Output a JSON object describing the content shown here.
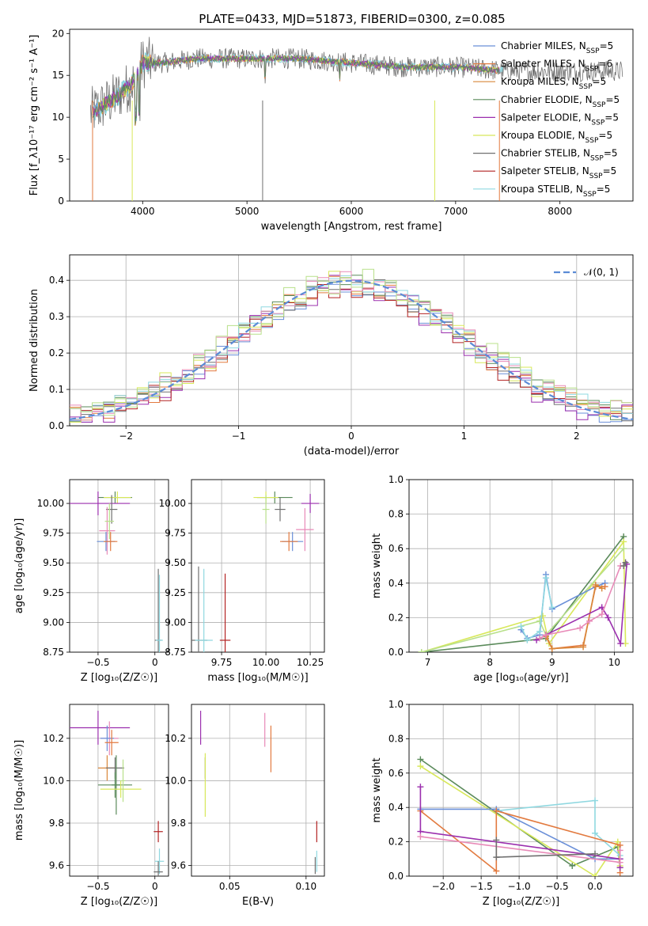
{
  "title": "PLATE=0433, MJD=51873, FIBERID=0300, z=0.085",
  "colors": {
    "Chabrier MILES": "#6a8fd8",
    "Salpeter MILES": "#e27a3f",
    "Kroupa MILES": "#d9873a",
    "Chabrier ELODIE": "#5a8a5a",
    "Salpeter ELODIE": "#9b2fae",
    "Kroupa ELODIE": "#d8e85a",
    "Chabrier STELIB": "#707070",
    "Salpeter STELIB": "#b22222",
    "Kroupa STELIB": "#8fd8e0",
    "pink": "#e88ab8",
    "lightgreen": "#b8e08a",
    "gaussian": "#5b8bd6"
  },
  "chart_data": [
    {
      "id": "spectrum",
      "type": "line",
      "xlabel": "wavelength [Angstrom, rest frame]",
      "ylabel": "Flux [f_λ10⁻¹⁷ erg cm⁻² s⁻¹ A⁻¹]",
      "xlim": [
        3300,
        8700
      ],
      "ylim": [
        0,
        20.5
      ],
      "xticks": [
        4000,
        5000,
        6000,
        7000,
        8000
      ],
      "yticks": [
        0,
        5,
        10,
        15,
        20
      ],
      "legend_position": "right",
      "legend": [
        {
          "label": "Chabrier MILES, N",
          "sub": "SSP",
          "suffix": "=5",
          "color": "#6a8fd8"
        },
        {
          "label": "Salpeter MILES, N",
          "sub": "SSP",
          "suffix": "=6",
          "color": "#e27a3f"
        },
        {
          "label": "Kroupa MILES, N",
          "sub": "SSP",
          "suffix": "=5",
          "color": "#d9873a"
        },
        {
          "label": "Chabrier ELODIE, N",
          "sub": "SSP",
          "suffix": "=5",
          "color": "#5a8a5a"
        },
        {
          "label": "Salpeter ELODIE, N",
          "sub": "SSP",
          "suffix": "=5",
          "color": "#9b2fae"
        },
        {
          "label": "Kroupa ELODIE, N",
          "sub": "SSP",
          "suffix": "=5",
          "color": "#d8e85a"
        },
        {
          "label": "Chabrier STELIB, N",
          "sub": "SSP",
          "suffix": "=5",
          "color": "#707070"
        },
        {
          "label": "Salpeter STELIB, N",
          "sub": "SSP",
          "suffix": "=5",
          "color": "#b22222"
        },
        {
          "label": "Kroupa STELIB, N",
          "sub": "SSP",
          "suffix": "=5",
          "color": "#8fd8e0"
        }
      ],
      "continuum": [
        [
          3500,
          10.5
        ],
        [
          3700,
          12
        ],
        [
          3900,
          14
        ],
        [
          4000,
          16.5
        ],
        [
          4200,
          16.5
        ],
        [
          4500,
          17
        ],
        [
          5000,
          17
        ],
        [
          5500,
          17
        ],
        [
          6000,
          16.5
        ],
        [
          6500,
          16
        ],
        [
          7000,
          16
        ],
        [
          7500,
          15.5
        ]
      ]
    },
    {
      "id": "residuals",
      "type": "histogram",
      "xlabel": "(data-model)/error",
      "ylabel": "Normed distribution",
      "xlim": [
        -2.5,
        2.5
      ],
      "ylim": [
        0,
        0.47
      ],
      "xticks": [
        -2,
        -1,
        0,
        1,
        2
      ],
      "yticks": [
        0.0,
        0.1,
        0.2,
        0.3,
        0.4
      ],
      "legend": "𝒩(0, 1)",
      "legend_position": "top-right",
      "bin_width": 0.1,
      "series": [
        {
          "name": "Chabrier MILES",
          "color": "#6a8fd8",
          "offset": 0.0,
          "jitter": 0.02
        },
        {
          "name": "Salpeter MILES",
          "color": "#e27a3f",
          "offset": 0.03,
          "jitter": 0.025
        },
        {
          "name": "Chabrier ELODIE",
          "color": "#5a8a5a",
          "offset": 0.06,
          "jitter": 0.02
        },
        {
          "name": "Salpeter ELODIE",
          "color": "#9b2fae",
          "offset": 0.02,
          "jitter": 0.03
        },
        {
          "name": "Kroupa ELODIE",
          "color": "#d8e85a",
          "offset": 0.05,
          "jitter": 0.03
        },
        {
          "name": "Chabrier STELIB",
          "color": "#707070",
          "offset": 0.04,
          "jitter": 0.02
        },
        {
          "name": "Salpeter STELIB",
          "color": "#b22222",
          "offset": 0.01,
          "jitter": 0.025
        },
        {
          "name": "Kroupa STELIB",
          "color": "#8fd8e0",
          "offset": 0.07,
          "jitter": 0.02
        },
        {
          "name": "pink",
          "color": "#e88ab8",
          "offset": 0.08,
          "jitter": 0.025
        },
        {
          "name": "lightgreen",
          "color": "#b8e08a",
          "offset": 0.09,
          "jitter": 0.03
        }
      ]
    },
    {
      "id": "age-z",
      "type": "errorbar",
      "xlabel": "Z [log₁₀(Z/Z☉)]",
      "ylabel": "age  [log₁₀(age/yr)]",
      "xlim": [
        -0.75,
        0.12
      ],
      "ylim": [
        8.75,
        10.2
      ],
      "xticks": [
        -0.5,
        0.0
      ],
      "yticks": [
        8.75,
        9.0,
        9.25,
        9.5,
        9.75,
        10.0
      ],
      "points": [
        {
          "x": -0.35,
          "y": 10.05,
          "xe": 0.15,
          "ye": 0.05,
          "c": "#5a8a5a"
        },
        {
          "x": -0.33,
          "y": 10.05,
          "xe": 0.12,
          "ye": 0.05,
          "c": "#d8e85a"
        },
        {
          "x": -0.5,
          "y": 10.0,
          "xe": 0.28,
          "ye": 0.1,
          "c": "#9b2fae"
        },
        {
          "x": -0.38,
          "y": 9.95,
          "xe": 0.05,
          "ye": 0.12,
          "c": "#707070"
        },
        {
          "x": -0.42,
          "y": 9.77,
          "xe": 0.07,
          "ye": 0.2,
          "c": "#e88ab8"
        },
        {
          "x": -0.4,
          "y": 9.85,
          "xe": 0.04,
          "ye": 0.15,
          "c": "#b8e08a"
        },
        {
          "x": -0.43,
          "y": 9.68,
          "xe": 0.08,
          "ye": 0.08,
          "c": "#6a8fd8"
        },
        {
          "x": -0.39,
          "y": 9.68,
          "xe": 0.06,
          "ye": 0.08,
          "c": "#e27a3f"
        },
        {
          "x": 0.03,
          "y": 8.85,
          "xe": 0.03,
          "ye": 0.6,
          "c": "#707070"
        },
        {
          "x": 0.04,
          "y": 8.85,
          "xe": 0.03,
          "ye": 0.55,
          "c": "#8fd8e0"
        }
      ]
    },
    {
      "id": "age-mass",
      "type": "errorbar",
      "xlabel": "mass [log₁₀(M/M☉)]",
      "ylabel": "",
      "xlim": [
        9.58,
        10.33
      ],
      "ylim": [
        8.75,
        10.2
      ],
      "xticks": [
        9.75,
        10.0,
        10.25
      ],
      "xticklabels": [
        "9.75",
        "10.00",
        "10.25"
      ],
      "yticks": [
        8.75,
        9.0,
        9.25,
        9.5,
        9.75,
        10.0
      ],
      "points": [
        {
          "x": 10.05,
          "y": 10.05,
          "xe": 0.1,
          "ye": 0.05,
          "c": "#5a8a5a"
        },
        {
          "x": 10.0,
          "y": 10.05,
          "xe": 0.07,
          "ye": 0.05,
          "c": "#d8e85a"
        },
        {
          "x": 10.25,
          "y": 10.0,
          "xe": 0.05,
          "ye": 0.08,
          "c": "#9b2fae"
        },
        {
          "x": 10.0,
          "y": 9.95,
          "xe": 0.02,
          "ye": 0.12,
          "c": "#b8e08a"
        },
        {
          "x": 10.08,
          "y": 9.95,
          "xe": 0.03,
          "ye": 0.1,
          "c": "#707070"
        },
        {
          "x": 10.22,
          "y": 9.78,
          "xe": 0.05,
          "ye": 0.18,
          "c": "#e88ab8"
        },
        {
          "x": 10.15,
          "y": 9.68,
          "xe": 0.06,
          "ye": 0.08,
          "c": "#6a8fd8"
        },
        {
          "x": 10.13,
          "y": 9.68,
          "xe": 0.05,
          "ye": 0.08,
          "c": "#e27a3f"
        },
        {
          "x": 9.62,
          "y": 8.85,
          "xe": 0.05,
          "ye": 0.62,
          "c": "#707070"
        },
        {
          "x": 9.65,
          "y": 8.85,
          "xe": 0.05,
          "ye": 0.6,
          "c": "#8fd8e0"
        },
        {
          "x": 9.77,
          "y": 8.85,
          "xe": 0.03,
          "ye": 0.56,
          "c": "#b22222"
        }
      ]
    },
    {
      "id": "weight-age",
      "type": "line",
      "xlabel": "age  [log₁₀(age/yr)]",
      "ylabel": "mass weight",
      "xlim": [
        6.7,
        10.3
      ],
      "ylim": [
        0,
        1.0
      ],
      "xticks": [
        7,
        8,
        9,
        10
      ],
      "yticks": [
        0.0,
        0.2,
        0.4,
        0.6,
        0.8,
        1.0
      ],
      "series": [
        {
          "c": "#5a8a5a",
          "pts": [
            [
              6.9,
              0.0
            ],
            [
              8.9,
              0.08
            ],
            [
              10.15,
              0.67
            ]
          ]
        },
        {
          "c": "#d8e85a",
          "pts": [
            [
              6.9,
              0.0
            ],
            [
              8.85,
              0.21
            ],
            [
              8.95,
              0.05
            ],
            [
              10.15,
              0.64
            ],
            [
              10.18,
              0.05
            ]
          ]
        },
        {
          "c": "#b8e08a",
          "pts": [
            [
              6.9,
              0.0
            ],
            [
              8.8,
              0.18
            ],
            [
              8.9,
              0.1
            ],
            [
              10.15,
              0.6
            ]
          ]
        },
        {
          "c": "#6a8fd8",
          "pts": [
            [
              8.5,
              0.13
            ],
            [
              8.6,
              0.08
            ],
            [
              8.8,
              0.1
            ],
            [
              8.9,
              0.45
            ],
            [
              9.0,
              0.25
            ],
            [
              9.7,
              0.38
            ],
            [
              9.85,
              0.4
            ]
          ]
        },
        {
          "c": "#8fd8e0",
          "pts": [
            [
              8.5,
              0.15
            ],
            [
              8.6,
              0.07
            ],
            [
              8.8,
              0.12
            ],
            [
              8.9,
              0.43
            ],
            [
              9.0,
              0.26
            ]
          ]
        },
        {
          "c": "#e27a3f",
          "pts": [
            [
              8.9,
              0.1
            ],
            [
              9.0,
              0.02
            ],
            [
              9.5,
              0.04
            ],
            [
              9.7,
              0.38
            ],
            [
              9.85,
              0.38
            ]
          ]
        },
        {
          "c": "#d9873a",
          "pts": [
            [
              8.9,
              0.09
            ],
            [
              9.0,
              0.02
            ],
            [
              9.5,
              0.03
            ],
            [
              9.7,
              0.39
            ],
            [
              9.8,
              0.37
            ]
          ]
        },
        {
          "c": "#9b2fae",
          "pts": [
            [
              8.75,
              0.07
            ],
            [
              8.9,
              0.1
            ],
            [
              9.8,
              0.26
            ],
            [
              9.9,
              0.2
            ],
            [
              10.1,
              0.05
            ],
            [
              10.2,
              0.51
            ]
          ]
        },
        {
          "c": "#e88ab8",
          "pts": [
            [
              8.8,
              0.08
            ],
            [
              8.9,
              0.1
            ],
            [
              9.45,
              0.14
            ],
            [
              9.6,
              0.18
            ],
            [
              9.8,
              0.22
            ],
            [
              10.1,
              0.5
            ]
          ]
        },
        {
          "c": "#707070",
          "pts": [
            [
              10.15,
              0.5
            ],
            [
              10.18,
              0.52
            ]
          ]
        }
      ]
    },
    {
      "id": "mass-z",
      "type": "errorbar",
      "xlabel": "Z [log₁₀(Z/Z☉)]",
      "ylabel": "mass [log₁₀(M/M☉)]",
      "xlim": [
        -0.75,
        0.12
      ],
      "ylim": [
        9.55,
        10.36
      ],
      "xticks": [
        -0.5,
        0.0
      ],
      "yticks": [
        9.6,
        9.8,
        10.0,
        10.2
      ],
      "points": [
        {
          "x": -0.5,
          "y": 10.25,
          "xe": 0.28,
          "ye": 0.08,
          "c": "#9b2fae"
        },
        {
          "x": -0.4,
          "y": 10.2,
          "xe": 0.08,
          "ye": 0.08,
          "c": "#e88ab8"
        },
        {
          "x": -0.42,
          "y": 10.2,
          "xe": 0.06,
          "ye": 0.06,
          "c": "#6a8fd8"
        },
        {
          "x": -0.38,
          "y": 10.18,
          "xe": 0.06,
          "ye": 0.06,
          "c": "#e27a3f"
        },
        {
          "x": -0.42,
          "y": 10.06,
          "xe": 0.08,
          "ye": 0.06,
          "c": "#d9873a"
        },
        {
          "x": -0.35,
          "y": 10.06,
          "xe": 0.08,
          "ye": 0.05,
          "c": "#707070"
        },
        {
          "x": -0.35,
          "y": 9.98,
          "xe": 0.15,
          "ye": 0.06,
          "c": "#5a8a5a"
        },
        {
          "x": -0.34,
          "y": 9.98,
          "xe": 0.04,
          "ye": 0.14,
          "c": "#5a8a5a"
        },
        {
          "x": -0.3,
          "y": 9.96,
          "xe": 0.18,
          "ye": 0.04,
          "c": "#d8e85a"
        },
        {
          "x": -0.28,
          "y": 10.0,
          "xe": 0.02,
          "ye": 0.1,
          "c": "#b8e08a"
        },
        {
          "x": 0.03,
          "y": 9.76,
          "xe": 0.04,
          "ye": 0.05,
          "c": "#b22222"
        },
        {
          "x": 0.04,
          "y": 9.62,
          "xe": 0.04,
          "ye": 0.06,
          "c": "#8fd8e0"
        },
        {
          "x": 0.03,
          "y": 9.57,
          "xe": 0.04,
          "ye": 0.05,
          "c": "#707070"
        }
      ]
    },
    {
      "id": "mass-ebv",
      "type": "errorbar",
      "xlabel": "E(B-V)",
      "ylabel": "",
      "xlim": [
        0.025,
        0.112
      ],
      "ylim": [
        9.55,
        10.36
      ],
      "xticks": [
        0.05,
        0.1
      ],
      "xticklabels": [
        "0.05",
        "0.10"
      ],
      "yticks": [
        9.6,
        9.8,
        10.0,
        10.2
      ],
      "points": [
        {
          "x": 0.031,
          "y": 10.25,
          "xe": 0,
          "ye": 0.08,
          "c": "#9b2fae"
        },
        {
          "x": 0.034,
          "y": 10.06,
          "xe": 0,
          "ye": 0.05,
          "c": "#707070"
        },
        {
          "x": 0.034,
          "y": 9.98,
          "xe": 0,
          "ye": 0.15,
          "c": "#d8e85a"
        },
        {
          "x": 0.073,
          "y": 10.24,
          "xe": 0,
          "ye": 0.08,
          "c": "#e88ab8"
        },
        {
          "x": 0.077,
          "y": 10.15,
          "xe": 0,
          "ye": 0.11,
          "c": "#e27a3f"
        },
        {
          "x": 0.107,
          "y": 9.76,
          "xe": 0,
          "ye": 0.05,
          "c": "#b22222"
        },
        {
          "x": 0.107,
          "y": 9.62,
          "xe": 0,
          "ye": 0.05,
          "c": "#8fd8e0"
        },
        {
          "x": 0.106,
          "y": 9.6,
          "xe": 0,
          "ye": 0.04,
          "c": "#707070"
        }
      ]
    },
    {
      "id": "weight-z",
      "type": "line",
      "xlabel": "Z [log₁₀(Z/Z☉)]",
      "ylabel": "mass weight",
      "xlim": [
        -2.45,
        0.5
      ],
      "ylim": [
        0,
        1.0
      ],
      "xticks": [
        -2.0,
        -1.5,
        -1.0,
        -0.5,
        0.0
      ],
      "xticklabels": [
        "−2.0",
        "−1.5",
        "−1.0",
        "−0.5",
        "0.0"
      ],
      "yticks": [
        0.0,
        0.2,
        0.4,
        0.6,
        0.8,
        1.0
      ],
      "series": [
        {
          "c": "#5a8a5a",
          "pts": [
            [
              -2.3,
              0.68
            ],
            [
              -0.3,
              0.06
            ],
            [
              0.3,
              0.17
            ],
            [
              0.33,
              0.05
            ]
          ]
        },
        {
          "c": "#d8e85a",
          "pts": [
            [
              -2.3,
              0.64
            ],
            [
              0.0,
              0.0
            ],
            [
              0.3,
              0.2
            ],
            [
              0.33,
              0.06
            ]
          ]
        },
        {
          "c": "#6a8fd8",
          "pts": [
            [
              -2.3,
              0.39
            ],
            [
              -1.3,
              0.39
            ],
            [
              0.0,
              0.1
            ],
            [
              0.33,
              0.1
            ]
          ]
        },
        {
          "c": "#8fd8e0",
          "pts": [
            [
              -1.3,
              0.38
            ],
            [
              0.0,
              0.44
            ],
            [
              0.0,
              0.25
            ],
            [
              0.33,
              0.12
            ]
          ]
        },
        {
          "c": "#e27a3f",
          "pts": [
            [
              -2.3,
              0.38
            ],
            [
              -1.3,
              0.03
            ],
            [
              -1.3,
              0.38
            ],
            [
              0.33,
              0.18
            ],
            [
              0.33,
              0.02
            ]
          ]
        },
        {
          "c": "#9b2fae",
          "pts": [
            [
              -2.3,
              0.52
            ],
            [
              -2.3,
              0.26
            ],
            [
              0.33,
              0.1
            ],
            [
              0.33,
              0.05
            ]
          ]
        },
        {
          "c": "#e88ab8",
          "pts": [
            [
              -2.3,
              0.23
            ],
            [
              0.33,
              0.08
            ],
            [
              0.33,
              0.15
            ]
          ]
        },
        {
          "c": "#707070",
          "pts": [
            [
              -1.3,
              0.21
            ],
            [
              -1.3,
              0.11
            ],
            [
              0.0,
              0.13
            ]
          ]
        }
      ]
    }
  ]
}
